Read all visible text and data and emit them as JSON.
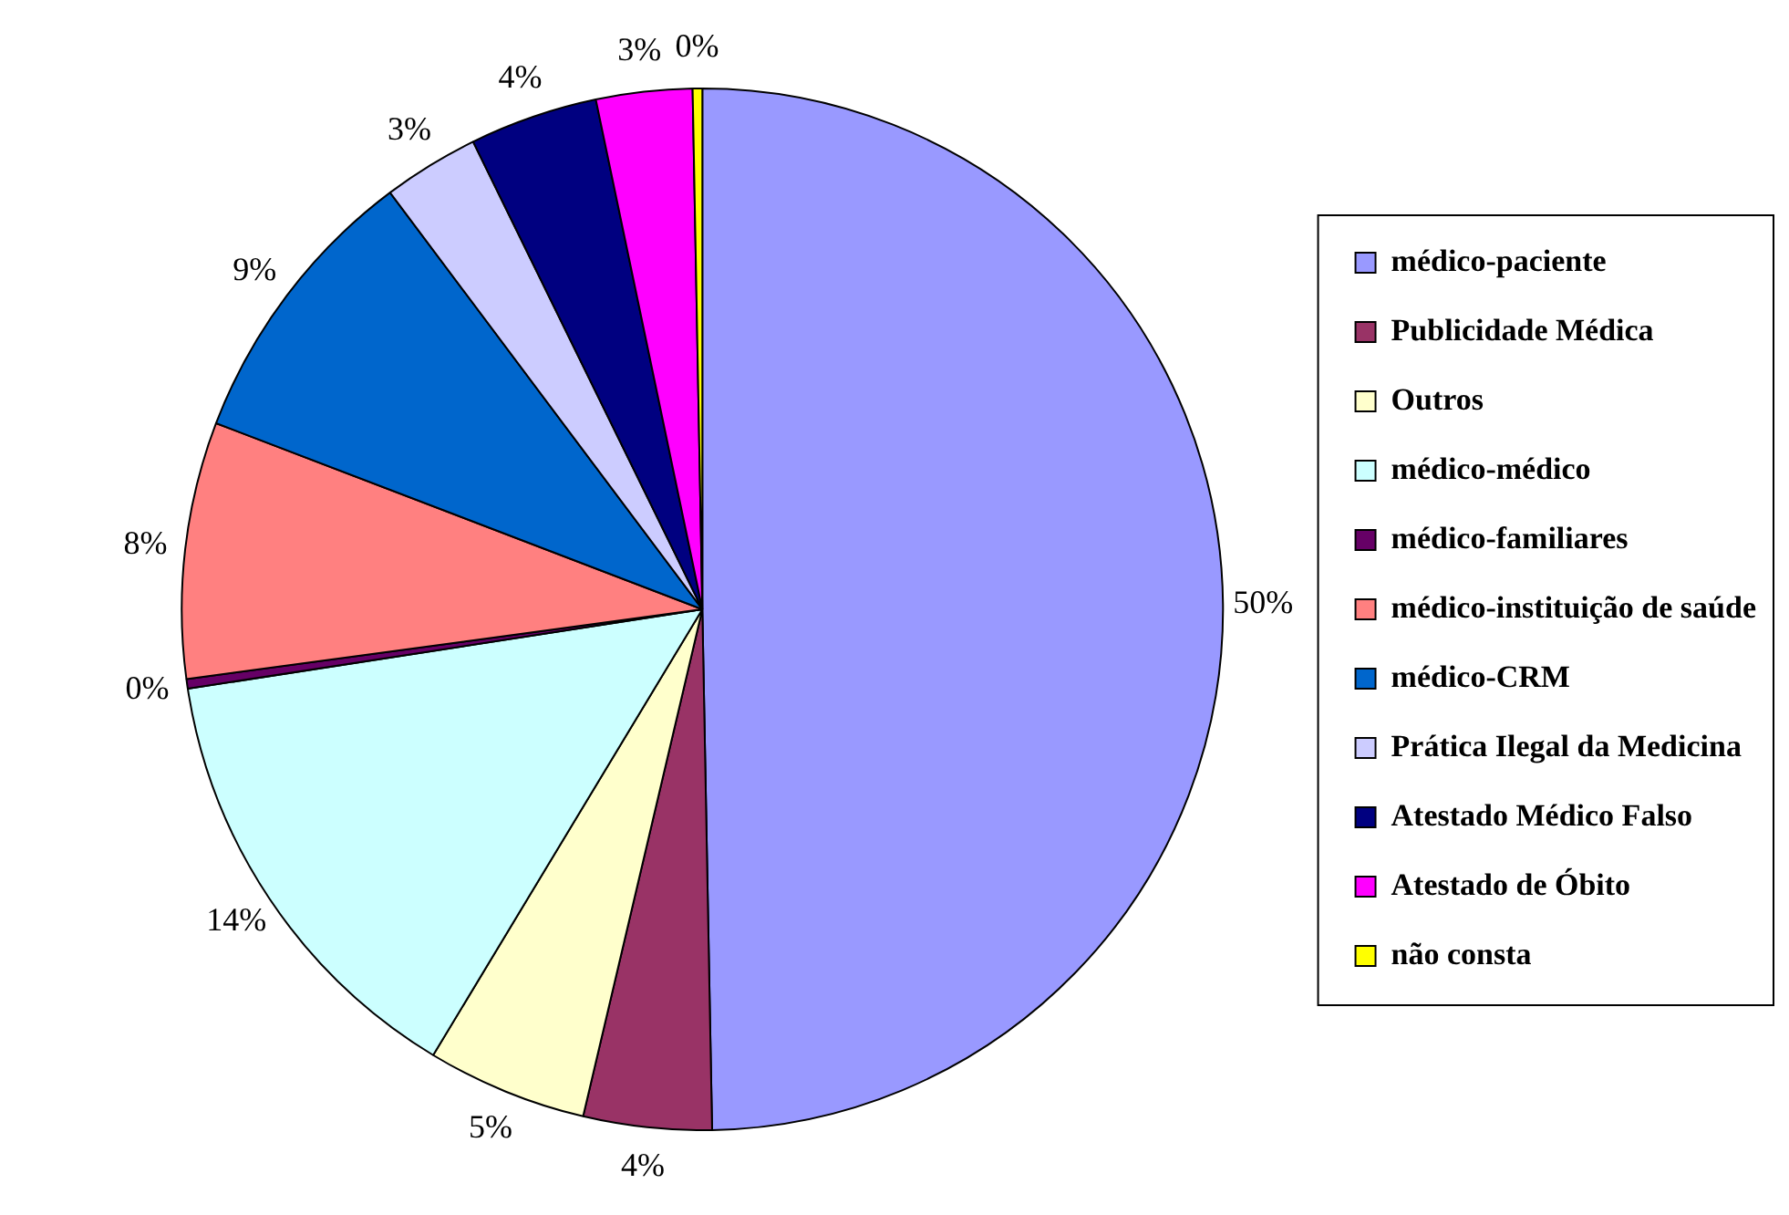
{
  "chart_data": {
    "type": "pie",
    "categories": [
      "médico-paciente",
      "Publicidade Médica",
      "Outros",
      "médico-médico",
      "médico-familiares",
      "médico-instituição de saúde",
      "médico-CRM",
      "Prática Ilegal da Medicina",
      "Atestado Médico Falso",
      "Atestado de Óbito",
      "não consta"
    ],
    "values": [
      50,
      4,
      5,
      14,
      0.3,
      8,
      9,
      3,
      4,
      3,
      0.3
    ],
    "value_labels": [
      "50%",
      "4%",
      "5%",
      "14%",
      "0%",
      "8%",
      "9%",
      "3%",
      "4%",
      "3%",
      "0%"
    ],
    "colors": [
      "#9999ff",
      "#993366",
      "#ffffcc",
      "#ccffff",
      "#660066",
      "#ff8080",
      "#0066cc",
      "#ccccff",
      "#000080",
      "#ff00ff",
      "#ffff00"
    ],
    "legend": "right"
  }
}
